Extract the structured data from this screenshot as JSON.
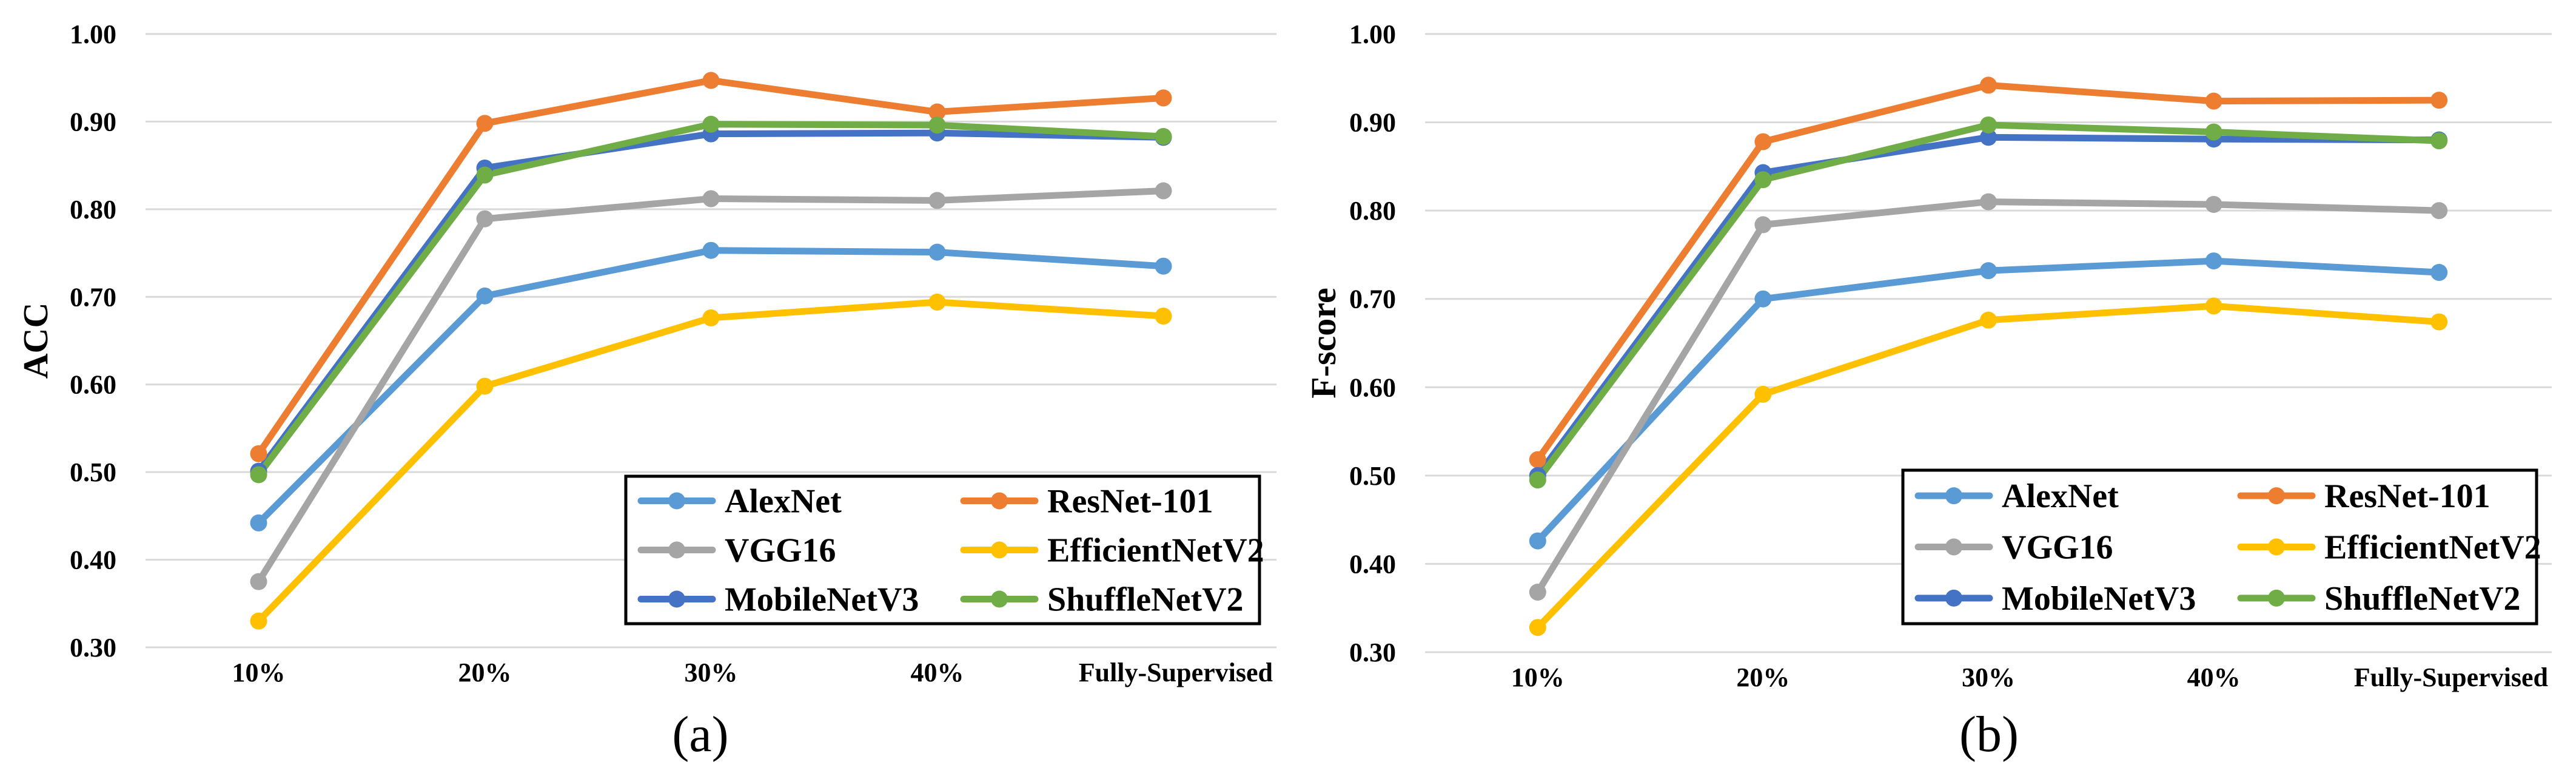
{
  "chart_data": [
    {
      "type": "line",
      "caption": "(a)",
      "ylabel": "ACC",
      "xlabel": "",
      "categories": [
        "10%",
        "20%",
        "30%",
        "40%",
        "Fully-Supervised"
      ],
      "ylim": [
        0.3,
        1.0
      ],
      "yticks": [
        "0.30",
        "0.40",
        "0.50",
        "0.60",
        "0.70",
        "0.80",
        "0.90",
        "1.00"
      ],
      "grid": true,
      "legend_position": "bottom-right",
      "series": [
        {
          "name": "AlexNet",
          "color": "#5B9BD5",
          "values": [
            0.442,
            0.701,
            0.753,
            0.751,
            0.735
          ]
        },
        {
          "name": "ResNet-101",
          "color": "#ED7D31",
          "values": [
            0.521,
            0.898,
            0.947,
            0.911,
            0.927
          ]
        },
        {
          "name": "VGG16",
          "color": "#A5A5A5",
          "values": [
            0.375,
            0.789,
            0.812,
            0.81,
            0.821
          ]
        },
        {
          "name": "EfficientNetV2",
          "color": "#FFC000",
          "values": [
            0.33,
            0.598,
            0.676,
            0.694,
            0.678
          ]
        },
        {
          "name": "MobileNetV3",
          "color": "#4472C4",
          "values": [
            0.501,
            0.847,
            0.886,
            0.887,
            0.882
          ]
        },
        {
          "name": "ShuffleNetV2",
          "color": "#70AD47",
          "values": [
            0.497,
            0.839,
            0.897,
            0.896,
            0.883
          ]
        }
      ]
    },
    {
      "type": "line",
      "caption": "(b)",
      "ylabel": "F-score",
      "xlabel": "",
      "categories": [
        "10%",
        "20%",
        "30%",
        "40%",
        "Fully-Supervised"
      ],
      "ylim": [
        0.3,
        1.0
      ],
      "yticks": [
        "0.30",
        "0.40",
        "0.50",
        "0.60",
        "0.70",
        "0.80",
        "0.90",
        "1.00"
      ],
      "grid": true,
      "legend_position": "bottom-right",
      "series": [
        {
          "name": "AlexNet",
          "color": "#5B9BD5",
          "values": [
            0.426,
            0.7,
            0.732,
            0.743,
            0.73
          ]
        },
        {
          "name": "ResNet-101",
          "color": "#ED7D31",
          "values": [
            0.518,
            0.878,
            0.942,
            0.924,
            0.925
          ]
        },
        {
          "name": "VGG16",
          "color": "#A5A5A5",
          "values": [
            0.368,
            0.784,
            0.81,
            0.807,
            0.8
          ]
        },
        {
          "name": "EfficientNetV2",
          "color": "#FFC000",
          "values": [
            0.328,
            0.592,
            0.676,
            0.692,
            0.674
          ]
        },
        {
          "name": "MobileNetV3",
          "color": "#4472C4",
          "values": [
            0.5,
            0.843,
            0.883,
            0.881,
            0.88
          ]
        },
        {
          "name": "ShuffleNetV2",
          "color": "#70AD47",
          "values": [
            0.495,
            0.835,
            0.897,
            0.889,
            0.879
          ]
        }
      ]
    }
  ]
}
